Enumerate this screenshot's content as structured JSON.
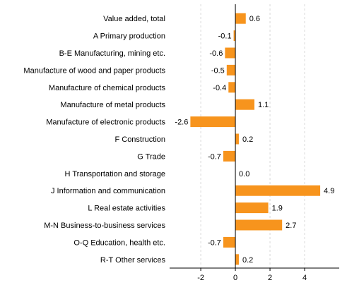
{
  "chart_data": {
    "type": "bar",
    "orientation": "horizontal",
    "categories": [
      "Value added, total",
      "A Primary production",
      "B-E Manufacturing, mining etc.",
      "Manufacture of wood and paper products",
      "Manufacture of chemical products",
      "Manufacture of metal products",
      "Manufacture of electronic products",
      "F Construction",
      "G Trade",
      "H Transportation and storage",
      "J Information and communication",
      "L Real estate activities",
      "M-N Business-to-business services",
      "O-Q Education, health etc.",
      "R-T Other services"
    ],
    "values": [
      0.6,
      -0.1,
      -0.6,
      -0.5,
      -0.4,
      1.1,
      -2.6,
      0.2,
      -0.7,
      0.0,
      4.9,
      1.9,
      2.7,
      -0.7,
      0.2
    ],
    "value_labels": [
      "0.6",
      "-0.1",
      "-0.6",
      "-0.5",
      "-0.4",
      "1.1",
      "-2.6",
      "0.2",
      "-0.7",
      "0.0",
      "4.9",
      "1.9",
      "2.7",
      "-0.7",
      "0.2"
    ],
    "title": "",
    "xlabel": "",
    "ylabel": "",
    "xlim": [
      -3.8,
      6.0
    ],
    "xticks": [
      -2,
      0,
      2,
      4
    ],
    "xtick_labels": [
      "-2",
      "0",
      "2",
      "4"
    ],
    "grid": "vertical-dashed",
    "legend": "none",
    "bar_color": "#f7941d",
    "grid_color": "#d9d9d9",
    "axis_color": "#000000"
  }
}
